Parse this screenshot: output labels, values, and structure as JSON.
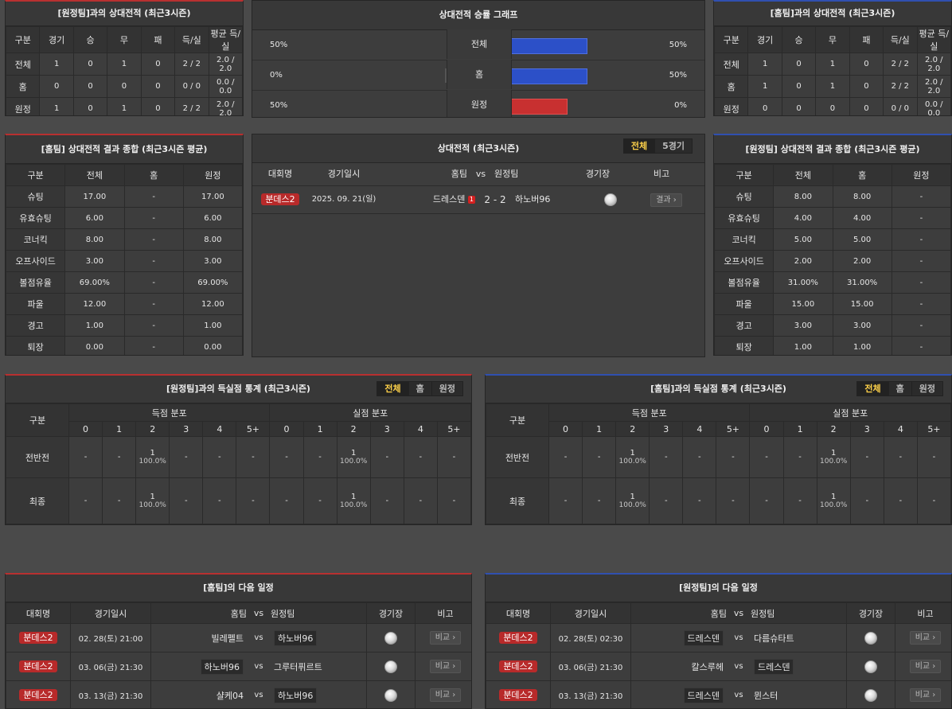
{
  "away_h2h": {
    "title": "[원정팀]과의 상대전적 (최근3시즌)",
    "headers": [
      "구분",
      "경기",
      "승",
      "무",
      "패",
      "득/실",
      "평균 득/실"
    ],
    "rows": [
      [
        "전체",
        "1",
        "0",
        "1",
        "0",
        "2 / 2",
        "2.0 / 2.0"
      ],
      [
        "홈",
        "0",
        "0",
        "0",
        "0",
        "0 / 0",
        "0.0 / 0.0"
      ],
      [
        "원정",
        "1",
        "0",
        "1",
        "0",
        "2 / 2",
        "2.0 / 2.0"
      ]
    ]
  },
  "graph": {
    "title": "상대전적 승률 그래프",
    "rows": [
      {
        "label": "전체",
        "left": "50%",
        "right": "50%",
        "left_frac": 0.5,
        "right_frac": 0.5
      },
      {
        "label": "홈",
        "left": "0%",
        "right": "50%",
        "left_frac": 0,
        "right_frac": 0.5
      },
      {
        "label": "원정",
        "left": "50%",
        "right": "0%",
        "left_frac": 0.5,
        "right_frac": 0
      }
    ],
    "colors": {
      "left": "#c83030",
      "right": "#2c50c8"
    }
  },
  "home_h2h": {
    "title": "[홈팀]과의 상대전적 (최근3시즌)",
    "headers": [
      "구분",
      "경기",
      "승",
      "무",
      "패",
      "득/실",
      "평균 득/실"
    ],
    "rows": [
      [
        "전체",
        "1",
        "0",
        "1",
        "0",
        "2 / 2",
        "2.0 / 2.0"
      ],
      [
        "홈",
        "1",
        "0",
        "1",
        "0",
        "2 / 2",
        "2.0 / 2.0"
      ],
      [
        "원정",
        "0",
        "0",
        "0",
        "0",
        "0 / 0",
        "0.0 / 0.0"
      ]
    ]
  },
  "home_summary": {
    "title": "[홈팀] 상대전적 결과 종합 (최근3시즌 평균)",
    "headers": [
      "구분",
      "전체",
      "홈",
      "원정"
    ],
    "rows": [
      [
        "슈팅",
        "17.00",
        "-",
        "17.00"
      ],
      [
        "유효슈팅",
        "6.00",
        "-",
        "6.00"
      ],
      [
        "코너킥",
        "8.00",
        "-",
        "8.00"
      ],
      [
        "오프사이드",
        "3.00",
        "-",
        "3.00"
      ],
      [
        "볼점유율",
        "69.00%",
        "-",
        "69.00%"
      ],
      [
        "파울",
        "12.00",
        "-",
        "12.00"
      ],
      [
        "경고",
        "1.00",
        "-",
        "1.00"
      ],
      [
        "퇴장",
        "0.00",
        "-",
        "0.00"
      ]
    ]
  },
  "h2h_list": {
    "title": "상대전적 (최근3시즌)",
    "tabs": [
      "전체",
      "5경기"
    ],
    "headers": [
      "대회명",
      "경기일시",
      "홈팀",
      "vs",
      "원정팀",
      "경기장",
      "비고"
    ],
    "match": {
      "league": "분데스2",
      "date": "2025. 09. 21(일)",
      "home": "드레스덴",
      "red": "1",
      "score": "2 - 2",
      "away": "하노버96",
      "btn": "결과 ›"
    }
  },
  "away_summary": {
    "title": "[원정팀] 상대전적 결과 종합 (최근3시즌 평균)",
    "headers": [
      "구분",
      "전체",
      "홈",
      "원정"
    ],
    "rows": [
      [
        "슈팅",
        "8.00",
        "8.00",
        "-"
      ],
      [
        "유효슈팅",
        "4.00",
        "4.00",
        "-"
      ],
      [
        "코너킥",
        "5.00",
        "5.00",
        "-"
      ],
      [
        "오프사이드",
        "2.00",
        "2.00",
        "-"
      ],
      [
        "볼점유율",
        "31.00%",
        "31.00%",
        "-"
      ],
      [
        "파울",
        "15.00",
        "15.00",
        "-"
      ],
      [
        "경고",
        "3.00",
        "3.00",
        "-"
      ],
      [
        "퇴장",
        "1.00",
        "1.00",
        "-"
      ]
    ]
  },
  "goals_left": {
    "title": "[원정팀]과의 득실점 통계 (최근3시즌)",
    "tabs": [
      "전체",
      "홈",
      "원정"
    ],
    "col_label": "구분",
    "group_scored": "득점 분포",
    "group_conceded": "실점 분포",
    "buckets": [
      "0",
      "1",
      "2",
      "3",
      "4",
      "5+"
    ],
    "rows": [
      {
        "label": "전반전",
        "cells": [
          [
            "-",
            ""
          ],
          [
            "-",
            ""
          ],
          [
            "1",
            "100.0%"
          ],
          [
            "-",
            ""
          ],
          [
            "-",
            ""
          ],
          [
            "-",
            ""
          ],
          [
            "-",
            ""
          ],
          [
            "-",
            ""
          ],
          [
            "1",
            "100.0%"
          ],
          [
            "-",
            ""
          ],
          [
            "-",
            ""
          ],
          [
            "-",
            ""
          ]
        ]
      },
      {
        "label": "최종",
        "cells": [
          [
            "-",
            ""
          ],
          [
            "-",
            ""
          ],
          [
            "1",
            "100.0%"
          ],
          [
            "-",
            ""
          ],
          [
            "-",
            ""
          ],
          [
            "-",
            ""
          ],
          [
            "-",
            ""
          ],
          [
            "-",
            ""
          ],
          [
            "1",
            "100.0%"
          ],
          [
            "-",
            ""
          ],
          [
            "-",
            ""
          ],
          [
            "-",
            ""
          ]
        ]
      }
    ]
  },
  "goals_right": {
    "title": "[홈팀]과의 득실점 통계 (최근3시즌)",
    "tabs": [
      "전체",
      "홈",
      "원정"
    ],
    "col_label": "구분",
    "group_scored": "득점 분포",
    "group_conceded": "실점 분포",
    "buckets": [
      "0",
      "1",
      "2",
      "3",
      "4",
      "5+"
    ],
    "rows": [
      {
        "label": "전반전",
        "cells": [
          [
            "-",
            ""
          ],
          [
            "-",
            ""
          ],
          [
            "1",
            "100.0%"
          ],
          [
            "-",
            ""
          ],
          [
            "-",
            ""
          ],
          [
            "-",
            ""
          ],
          [
            "-",
            ""
          ],
          [
            "-",
            ""
          ],
          [
            "1",
            "100.0%"
          ],
          [
            "-",
            ""
          ],
          [
            "-",
            ""
          ],
          [
            "-",
            ""
          ]
        ]
      },
      {
        "label": "최종",
        "cells": [
          [
            "-",
            ""
          ],
          [
            "-",
            ""
          ],
          [
            "1",
            "100.0%"
          ],
          [
            "-",
            ""
          ],
          [
            "-",
            ""
          ],
          [
            "-",
            ""
          ],
          [
            "-",
            ""
          ],
          [
            "-",
            ""
          ],
          [
            "1",
            "100.0%"
          ],
          [
            "-",
            ""
          ],
          [
            "-",
            ""
          ],
          [
            "-",
            ""
          ]
        ]
      }
    ]
  },
  "home_next": {
    "title": "[홈팀]의 다음 일정",
    "headers": [
      "대회명",
      "경기일시",
      "홈팀",
      "vs",
      "원정팀",
      "경기장",
      "비고"
    ],
    "rows": [
      {
        "league": "분데스2",
        "date": "02. 28(토) 21:00",
        "home": "빌레펠트",
        "away": "하노버96",
        "hl": "away",
        "btn": "비교 ›"
      },
      {
        "league": "분데스2",
        "date": "03. 06(금) 21:30",
        "home": "하노버96",
        "away": "그루터퓌르트",
        "hl": "home",
        "btn": "비교 ›"
      },
      {
        "league": "분데스2",
        "date": "03. 13(금) 21:30",
        "home": "샬케04",
        "away": "하노버96",
        "hl": "away",
        "btn": "비교 ›"
      }
    ]
  },
  "away_next": {
    "title": "[원정팀]의 다음 일정",
    "headers": [
      "대회명",
      "경기일시",
      "홈팀",
      "vs",
      "원정팀",
      "경기장",
      "비고"
    ],
    "rows": [
      {
        "league": "분데스2",
        "date": "02. 28(토) 02:30",
        "home": "드레스덴",
        "away": "다름슈타트",
        "hl": "home",
        "btn": "비교 ›"
      },
      {
        "league": "분데스2",
        "date": "03. 06(금) 21:30",
        "home": "칼스루헤",
        "away": "드레스덴",
        "hl": "away",
        "btn": "비교 ›"
      },
      {
        "league": "분데스2",
        "date": "03. 13(금) 21:30",
        "home": "드레스덴",
        "away": "뮌스터",
        "hl": "home",
        "btn": "비교 ›"
      }
    ]
  }
}
